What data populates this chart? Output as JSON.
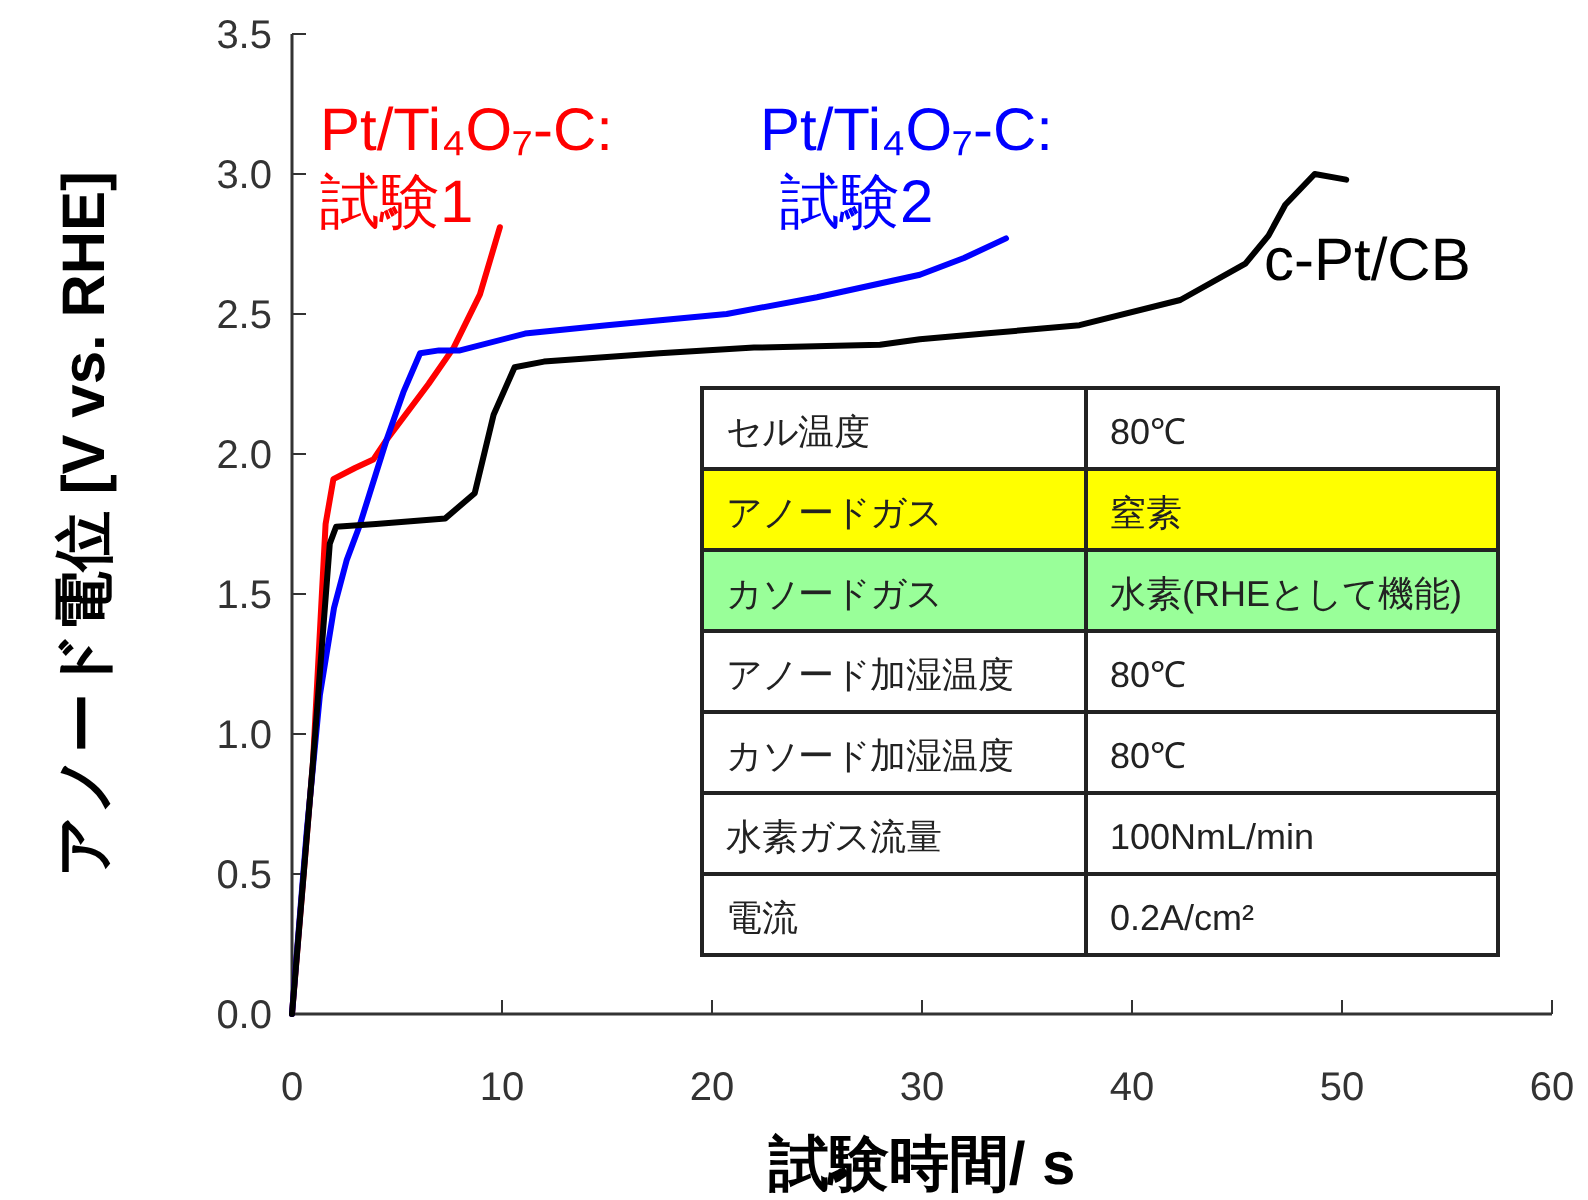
{
  "chart_data": {
    "type": "line",
    "xlabel": "試験時間/ s",
    "ylabel": "アノード電位 [V vs. RHE]",
    "xlim": [
      0,
      60
    ],
    "xticks": [
      0,
      10,
      20,
      30,
      40,
      50,
      60
    ],
    "ylim": [
      0,
      3.5
    ],
    "yticks": [
      {
        "value": 0,
        "label": "0.0"
      },
      0.5,
      {
        "value": 1,
        "label": "1.0"
      },
      1.5,
      {
        "value": 2,
        "label": "2.0"
      },
      2.5,
      {
        "value": 3,
        "label": "3.0"
      },
      3.5
    ],
    "grid": false,
    "legend": false,
    "marker": "none",
    "line_style": "solid",
    "series": [
      {
        "name": "Pt/Ti₄O₇-C:\n試験1",
        "color": "#ff0000",
        "x": [
          0,
          1,
          1.6,
          1.97,
          3,
          3.87,
          4.5,
          5.5,
          6.5,
          7.7,
          8.95,
          9.9
        ],
        "values": [
          0,
          0.9,
          1.75,
          1.91,
          1.95,
          1.98,
          2.05,
          2.15,
          2.25,
          2.38,
          2.57,
          2.81
        ]
      },
      {
        "name": "Pt/Ti₄O₇-C:\n試験2",
        "color": "#0000ff",
        "x": [
          0,
          0.2,
          0.7,
          1.33,
          2,
          2.6,
          3.2,
          4.5,
          5.3,
          6.1,
          7,
          8,
          11.1,
          15,
          20.7,
          25,
          29.9,
          32,
          34
        ],
        "values": [
          0,
          0.19,
          0.65,
          1.14,
          1.45,
          1.62,
          1.74,
          2.05,
          2.22,
          2.36,
          2.37,
          2.37,
          2.43,
          2.46,
          2.5,
          2.56,
          2.64,
          2.7,
          2.77
        ]
      },
      {
        "name": "c-Pt/CB",
        "color": "#000000",
        "x": [
          0,
          1,
          1.8,
          2.1,
          4,
          7.3,
          8.7,
          9.6,
          10.6,
          12,
          17.5,
          22,
          28,
          29.9,
          33,
          37.5,
          42.3,
          45.4,
          46.5,
          47.3,
          48.7,
          50.2
        ],
        "values": [
          0,
          0.9,
          1.68,
          1.74,
          1.75,
          1.77,
          1.86,
          2.14,
          2.31,
          2.33,
          2.36,
          2.38,
          2.39,
          2.41,
          2.43,
          2.46,
          2.55,
          2.68,
          2.78,
          2.89,
          3.0,
          2.98
        ]
      }
    ],
    "annotations": [
      "セル温度",
      "80℃",
      "アノードガス",
      "窒素",
      "カソードガス",
      "水素(RHEとして機能)",
      "アノード加湿温度",
      "80℃",
      "カソード加湿温度",
      "80℃",
      "水素ガス流量",
      "100NmL/min",
      "電流",
      "0.2A/cm²"
    ]
  }
}
